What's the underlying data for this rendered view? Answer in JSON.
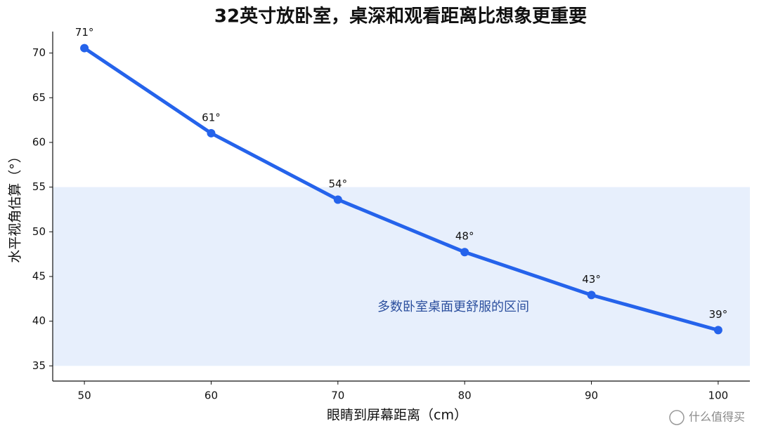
{
  "chart_data": {
    "type": "line",
    "title": "32英寸放卧室，桌深和观看距离比想象更重要",
    "x_label": "眼睛到屏幕距离（cm）",
    "y_label": "水平视角估算（°）",
    "x": [
      50,
      60,
      70,
      80,
      90,
      100
    ],
    "series": [
      {
        "name": "水平视角",
        "color": "#2563eb",
        "values": [
          70.55,
          61.03,
          53.6,
          47.73,
          42.93,
          39.0
        ],
        "value_labels": [
          "71°",
          "61°",
          "54°",
          "48°",
          "43°",
          "39°"
        ]
      }
    ],
    "xlim": [
      47.5,
      102.5
    ],
    "xticks": [
      50,
      60,
      70,
      80,
      90,
      100
    ],
    "ylim": [
      33.3,
      72.4
    ],
    "yticks": [
      35,
      40,
      45,
      50,
      55,
      60,
      65,
      70
    ],
    "band": {
      "range": [
        35,
        55
      ],
      "color": "#e7effc",
      "label": "多数卧室桌面更舒服的区间"
    },
    "grid": false
  },
  "watermark": "什么值得买"
}
